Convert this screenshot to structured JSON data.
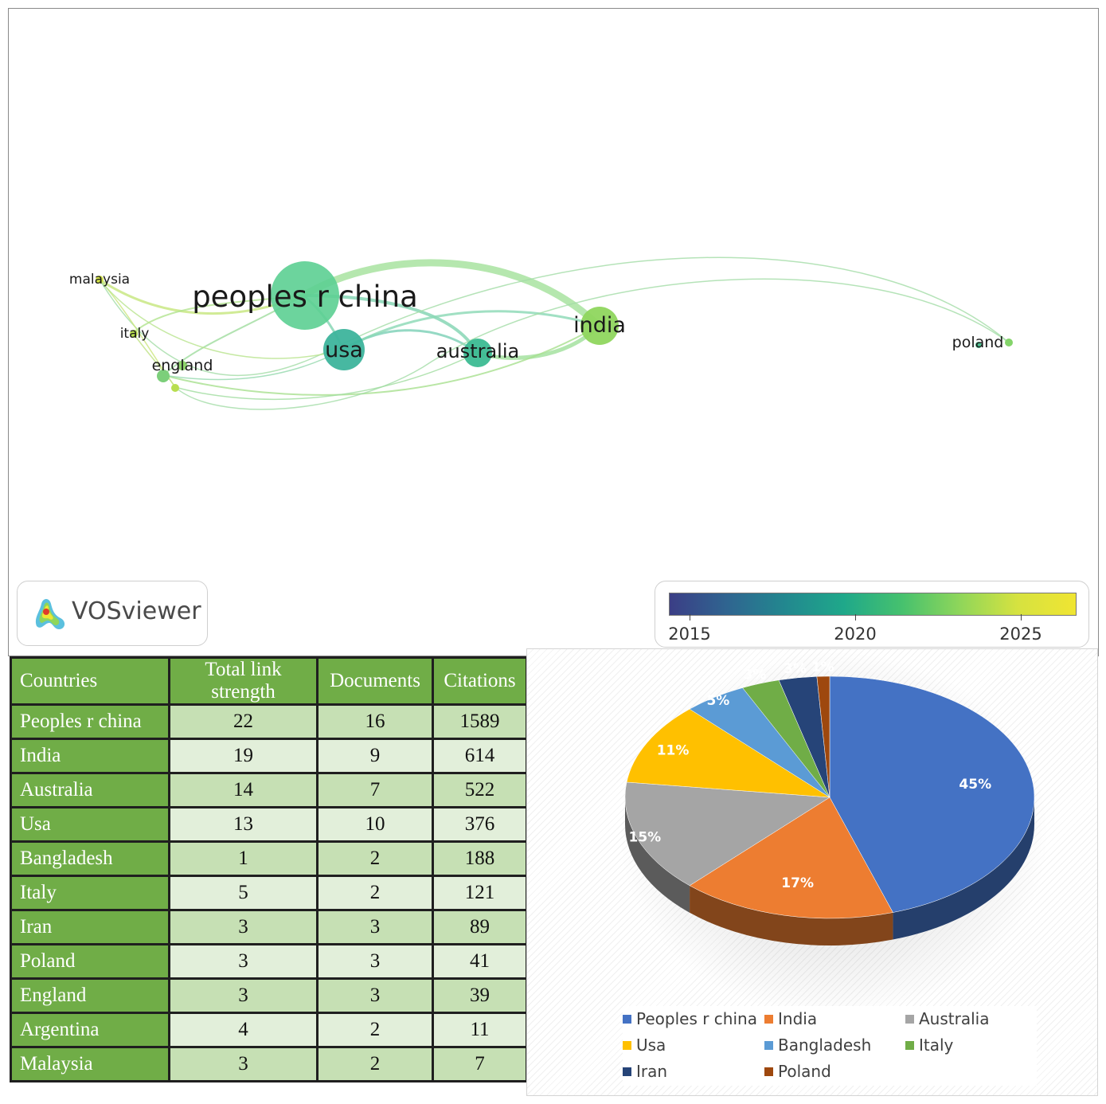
{
  "network": {
    "nodes": [
      {
        "label": "peoples r china"
      },
      {
        "label": "india"
      },
      {
        "label": "australia"
      },
      {
        "label": "usa"
      },
      {
        "label": "malaysia"
      },
      {
        "label": "italy"
      },
      {
        "label": "england"
      },
      {
        "label": "poland"
      }
    ],
    "logo_text": "VOSviewer",
    "color_scale": {
      "ticks": [
        "2015",
        "2020",
        "2025"
      ],
      "colors": [
        "#3b3e86",
        "#22888f",
        "#1fa88a",
        "#8fd65a",
        "#f0e532"
      ]
    }
  },
  "table": {
    "headers": [
      "Countries",
      "Total link strength",
      "Documents",
      "Citations"
    ],
    "rows": [
      [
        "Peoples r  china",
        "22",
        "16",
        "1589"
      ],
      [
        "India",
        "19",
        "9",
        "614"
      ],
      [
        "Australia",
        "14",
        "7",
        "522"
      ],
      [
        "Usa",
        "13",
        "10",
        "376"
      ],
      [
        "Bangladesh",
        "1",
        "2",
        "188"
      ],
      [
        "Italy",
        "5",
        "2",
        "121"
      ],
      [
        "Iran",
        "3",
        "3",
        "89"
      ],
      [
        "Poland",
        "3",
        "3",
        "41"
      ],
      [
        "England",
        "3",
        "3",
        "39"
      ],
      [
        "Argentina",
        "4",
        "2",
        "11"
      ],
      [
        "Malaysia",
        "3",
        "2",
        "7"
      ]
    ]
  },
  "chart_data": {
    "type": "pie",
    "categories": [
      "Peoples r  china",
      "India",
      "Australia",
      "Usa",
      "Bangladesh",
      "Italy",
      "Iran",
      "Poland"
    ],
    "values": [
      45,
      17,
      15,
      11,
      5,
      3,
      3,
      1
    ],
    "labels": [
      "45%",
      "17%",
      "15%",
      "11%",
      "5%",
      "3%",
      "3%",
      "1%"
    ],
    "colors": [
      "#4472c4",
      "#ed7d31",
      "#a5a5a5",
      "#ffc000",
      "#5b9bd5",
      "#70ad47",
      "#264478",
      "#9e480e"
    ],
    "legend_position": "bottom"
  }
}
